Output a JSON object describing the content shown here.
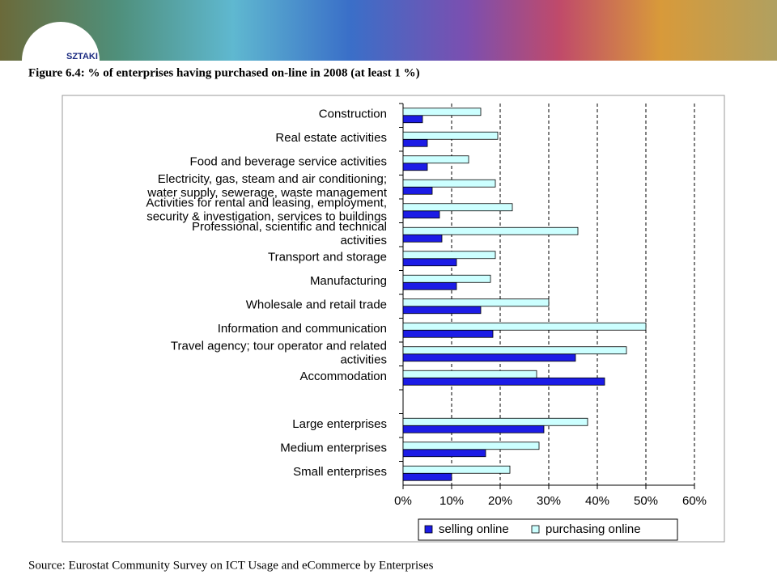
{
  "logo_text": "SZTAKI",
  "figure_title": "Figure 6.4: % of enterprises having purchased on-line in 2008 (at least 1 %)",
  "source": "Source: Eurostat Community Survey on ICT Usage and eCommerce by Enterprises",
  "chart_data": {
    "type": "hbar",
    "categories": [
      "Construction",
      "Real estate activities",
      "Food and beverage service activities",
      "Electricity, gas, steam and air conditioning;\nwater supply, sewerage, waste management",
      "Activities for rental and leasing, employment,\nsecurity & investigation, services to buildings",
      "Professional, scientific and technical\nactivities",
      "Transport and storage",
      "Manufacturing",
      "Wholesale and retail trade",
      "Information and communication",
      "Travel agency; tour operator and related\nactivities",
      "Accommodation",
      null,
      "Large enterprises",
      "Medium enterprises",
      "Small enterprises"
    ],
    "series": [
      {
        "name": "selling online",
        "color": "#1c1ce6",
        "values": [
          4,
          5,
          5,
          6,
          7.5,
          8,
          11,
          11,
          16,
          18.5,
          35.5,
          41.5,
          null,
          29,
          17,
          10
        ]
      },
      {
        "name": "purchasing online",
        "color": "#ccffff",
        "values": [
          16,
          19.5,
          13.5,
          19,
          22.5,
          36,
          19,
          18,
          30,
          50,
          46,
          27.5,
          null,
          38,
          28,
          22
        ]
      }
    ],
    "xlim": [
      0,
      60
    ],
    "xticks": [
      {
        "value": 0,
        "label": "0%"
      },
      {
        "value": 10,
        "label": "10%"
      },
      {
        "value": 20,
        "label": "20%"
      },
      {
        "value": 30,
        "label": "30%"
      },
      {
        "value": 40,
        "label": "40%"
      },
      {
        "value": 50,
        "label": "50%"
      },
      {
        "value": 60,
        "label": "60%"
      }
    ],
    "grid": true,
    "legend": "bottom"
  }
}
